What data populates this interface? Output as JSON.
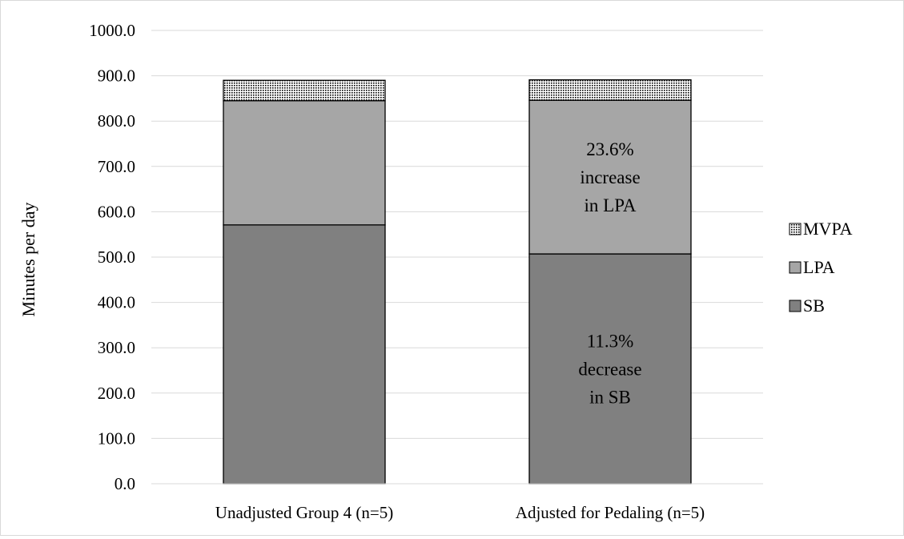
{
  "chart_data": {
    "type": "bar",
    "stacked": true,
    "categories": [
      "Unadjusted Group 4 (n=5)",
      "Adjusted  for Pedaling (n=5)"
    ],
    "series": [
      {
        "name": "SB",
        "values": [
          571,
          507
        ],
        "color": "#808080"
      },
      {
        "name": "LPA",
        "values": [
          274,
          339
        ],
        "color": "#a6a6a6"
      },
      {
        "name": "MVPA",
        "values": [
          45,
          45
        ],
        "color": "#ffffff",
        "pattern": "dotted"
      }
    ],
    "ylabel": "Minutes per day",
    "ylim": [
      0,
      1000
    ],
    "yticks": [
      "0.0",
      "100.0",
      "200.0",
      "300.0",
      "400.0",
      "500.0",
      "600.0",
      "700.0",
      "800.0",
      "900.0",
      "1000.0"
    ],
    "grid": true,
    "legend_placement": "right",
    "legend": [
      "MVPA",
      "LPA",
      "SB"
    ],
    "annotations": [
      {
        "category": 1,
        "series": "LPA",
        "lines": [
          "23.6%",
          "increase",
          "in LPA"
        ]
      },
      {
        "category": 1,
        "series": "SB",
        "lines": [
          "11.3%",
          "decrease",
          "in SB"
        ]
      }
    ]
  }
}
